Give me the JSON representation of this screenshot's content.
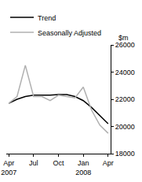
{
  "chart_data": {
    "type": "line",
    "ylabel": "$m",
    "categories": [
      "Apr 2007",
      null,
      null,
      "Jul",
      null,
      null,
      "Oct",
      null,
      null,
      "Jan 2008",
      null,
      null,
      "Apr"
    ],
    "series": [
      {
        "name": "Trend",
        "color": "#000000",
        "values": [
          21700,
          22000,
          22200,
          22300,
          22300,
          22300,
          22350,
          22350,
          22200,
          21900,
          21400,
          20800,
          20200
        ]
      },
      {
        "name": "Seasonally Adjusted",
        "color": "#b0b0b0",
        "values": [
          21700,
          22200,
          24500,
          22200,
          22200,
          21900,
          22300,
          22200,
          22100,
          22900,
          21200,
          20100,
          19500
        ]
      }
    ],
    "ylim": [
      18000,
      26000
    ],
    "yticks": [
      18000,
      20000,
      22000,
      24000,
      26000
    ],
    "grid": false,
    "legend": "top-left"
  }
}
